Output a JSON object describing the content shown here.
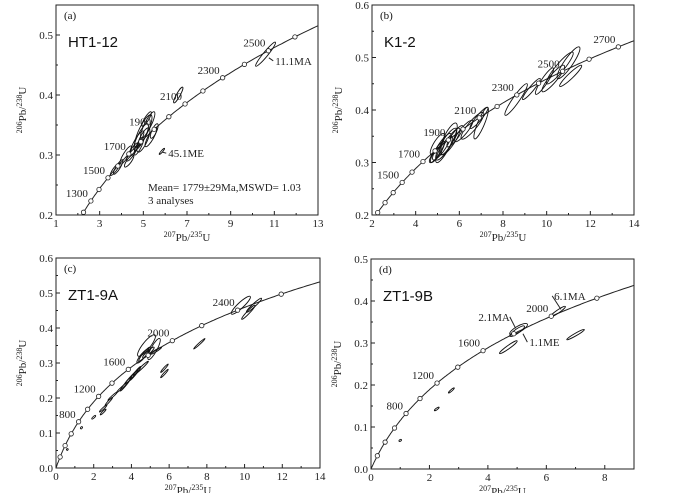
{
  "chart_data": [
    {
      "type": "scatter",
      "subtype": "concordia",
      "panel_label": "(a)",
      "sample": "HT1-12",
      "xlabel": {
        "sup1": "207",
        "base1": "Pb/",
        "sup2": "235",
        "base2": "U"
      },
      "ylabel": {
        "sup1": "206",
        "base1": "Pb/",
        "sup2": "238",
        "base2": "U"
      },
      "xlim": [
        1,
        13
      ],
      "ylim": [
        0.2,
        0.55
      ],
      "xticks": [
        1,
        3,
        5,
        7,
        9,
        11,
        13
      ],
      "xtick_labels": [
        "1",
        "3",
        "5",
        "7",
        "9",
        "11",
        "13"
      ],
      "yticks": [
        0.2,
        0.3,
        0.4,
        0.5
      ],
      "ytick_labels": [
        "0.2",
        "0.3",
        "0.4",
        "0.5"
      ],
      "marker_step_ma": 100,
      "age_labels": [
        1300,
        1500,
        1700,
        1900,
        2100,
        2300,
        2500
      ],
      "annotations": [
        {
          "text": "11.1MA",
          "x": 10.95,
          "y": 0.452,
          "px": 10.75,
          "py": 0.462
        },
        {
          "text": "45.1ME",
          "x": 6.05,
          "y": 0.298,
          "px": 5.85,
          "py": 0.305
        }
      ],
      "notes": [
        "Mean= 1779±29Ma,MSWD= 1.03",
        "3 analyses"
      ],
      "ellipses": [
        [
          10.6,
          0.468,
          0.45,
          0.02,
          0.3
        ],
        [
          6.6,
          0.4,
          0.2,
          0.013,
          0.4
        ],
        [
          5.85,
          0.306,
          0.12,
          0.005,
          0.3
        ],
        [
          5.2,
          0.35,
          0.3,
          0.022,
          0.45
        ],
        [
          5.0,
          0.34,
          0.35,
          0.027,
          0.5
        ],
        [
          4.9,
          0.33,
          0.3,
          0.022,
          0.5
        ],
        [
          5.35,
          0.33,
          0.25,
          0.016,
          0.5
        ],
        [
          4.7,
          0.32,
          0.3,
          0.02,
          0.45
        ],
        [
          5.0,
          0.325,
          0.25,
          0.02,
          0.6
        ],
        [
          4.5,
          0.305,
          0.25,
          0.015,
          0.5
        ],
        [
          4.2,
          0.3,
          0.25,
          0.015,
          0.5
        ],
        [
          4.35,
          0.29,
          0.2,
          0.01,
          0.6
        ],
        [
          3.85,
          0.28,
          0.2,
          0.012,
          0.5
        ],
        [
          3.7,
          0.276,
          0.2,
          0.01,
          0.5
        ],
        [
          5.5,
          0.34,
          0.15,
          0.012,
          0.6
        ],
        [
          5.15,
          0.36,
          0.2,
          0.012,
          0.5
        ],
        [
          4.8,
          0.315,
          0.2,
          0.015,
          0.5
        ]
      ]
    },
    {
      "type": "scatter",
      "subtype": "concordia",
      "panel_label": "(b)",
      "sample": "K1-2",
      "xlabel": {
        "sup1": "207",
        "base1": "Pb/",
        "sup2": "235",
        "base2": "U"
      },
      "ylabel": {
        "sup1": "206",
        "base1": "Pb/",
        "sup2": "238",
        "base2": "U"
      },
      "xlim": [
        2,
        14
      ],
      "ylim": [
        0.2,
        0.6
      ],
      "xticks": [
        2,
        4,
        6,
        8,
        10,
        12,
        14
      ],
      "xtick_labels": [
        "2",
        "4",
        "6",
        "8",
        "10",
        "12",
        "14"
      ],
      "yticks": [
        0.2,
        0.3,
        0.4,
        0.5,
        0.6
      ],
      "ytick_labels": [
        "0.2",
        "0.3",
        "0.4",
        "0.5",
        "0.6"
      ],
      "marker_step_ma": 100,
      "age_labels": [
        1500,
        1700,
        1900,
        2100,
        2300,
        2500,
        2700
      ],
      "annotations": [],
      "notes": [],
      "ellipses": [
        [
          5.0,
          0.32,
          0.3,
          0.02,
          0.5
        ],
        [
          5.2,
          0.33,
          0.4,
          0.025,
          0.5
        ],
        [
          5.4,
          0.335,
          0.45,
          0.03,
          0.5
        ],
        [
          5.6,
          0.34,
          0.4,
          0.025,
          0.5
        ],
        [
          5.0,
          0.335,
          0.3,
          0.02,
          0.6
        ],
        [
          5.8,
          0.35,
          0.35,
          0.02,
          0.5
        ],
        [
          5.3,
          0.325,
          0.35,
          0.025,
          0.5
        ],
        [
          4.9,
          0.315,
          0.25,
          0.015,
          0.6
        ],
        [
          5.5,
          0.345,
          0.35,
          0.03,
          0.55
        ],
        [
          6.2,
          0.36,
          0.4,
          0.02,
          0.5
        ],
        [
          6.6,
          0.37,
          0.5,
          0.025,
          0.5
        ],
        [
          7.0,
          0.375,
          0.3,
          0.03,
          0.4
        ],
        [
          6.9,
          0.385,
          0.4,
          0.02,
          0.4
        ],
        [
          8.6,
          0.42,
          0.5,
          0.03,
          0.35
        ],
        [
          9.3,
          0.44,
          0.4,
          0.02,
          0.35
        ],
        [
          9.9,
          0.455,
          0.4,
          0.025,
          0.4
        ],
        [
          10.3,
          0.46,
          0.5,
          0.025,
          0.45
        ],
        [
          10.6,
          0.48,
          0.6,
          0.03,
          0.4
        ],
        [
          11.0,
          0.49,
          0.5,
          0.03,
          0.45
        ],
        [
          11.1,
          0.465,
          0.5,
          0.02,
          0.35
        ]
      ]
    },
    {
      "type": "scatter",
      "subtype": "concordia",
      "panel_label": "(c)",
      "sample": "ZT1-9A",
      "xlabel": {
        "sup1": "207",
        "base1": "Pb/",
        "sup2": "235",
        "base2": "U"
      },
      "ylabel": {
        "sup1": "206",
        "base1": "Pb/",
        "sup2": "238",
        "base2": "U"
      },
      "xlim": [
        0,
        14
      ],
      "ylim": [
        0,
        0.6
      ],
      "xticks": [
        0,
        2,
        4,
        6,
        8,
        10,
        12,
        14
      ],
      "xtick_labels": [
        "0",
        "2",
        "4",
        "6",
        "8",
        "10",
        "12",
        "14"
      ],
      "yticks": [
        0,
        0.1,
        0.2,
        0.3,
        0.4,
        0.5,
        0.6
      ],
      "ytick_labels": [
        "0.0",
        "0.1",
        "0.2",
        "0.3",
        "0.4",
        "0.5",
        "0.6"
      ],
      "marker_step_ma": 200,
      "age_labels": [
        800,
        1200,
        1600,
        2000,
        2400
      ],
      "annotations": [],
      "notes": [],
      "ellipses": [
        [
          9.8,
          0.465,
          0.5,
          0.025,
          0.45
        ],
        [
          10.5,
          0.465,
          0.4,
          0.02,
          0.3
        ],
        [
          10.2,
          0.445,
          0.35,
          0.02,
          0.3
        ],
        [
          4.8,
          0.35,
          0.45,
          0.03,
          0.55
        ],
        [
          5.2,
          0.34,
          0.3,
          0.03,
          0.5
        ],
        [
          4.6,
          0.32,
          0.3,
          0.02,
          0.5
        ],
        [
          4.7,
          0.325,
          0.3,
          0.02,
          0.4
        ],
        [
          4.9,
          0.33,
          0.3,
          0.015,
          0.4
        ],
        [
          5.3,
          0.335,
          0.3,
          0.01,
          0.3
        ],
        [
          4.5,
          0.285,
          0.4,
          0.02,
          0.2
        ],
        [
          4.2,
          0.27,
          0.3,
          0.02,
          0.25
        ],
        [
          4.0,
          0.26,
          0.35,
          0.02,
          0.2
        ],
        [
          3.7,
          0.24,
          0.3,
          0.02,
          0.25
        ],
        [
          3.5,
          0.23,
          0.3,
          0.015,
          0.2
        ],
        [
          3.0,
          0.205,
          0.25,
          0.012,
          0.25
        ],
        [
          2.8,
          0.19,
          0.2,
          0.012,
          0.25
        ],
        [
          2.5,
          0.17,
          0.2,
          0.01,
          0.2
        ],
        [
          2.5,
          0.16,
          0.15,
          0.008,
          0.25
        ],
        [
          2.0,
          0.145,
          0.1,
          0.005,
          0.5
        ],
        [
          5.75,
          0.285,
          0.2,
          0.012,
          0.25
        ],
        [
          5.75,
          0.27,
          0.2,
          0.012,
          0.25
        ],
        [
          7.6,
          0.355,
          0.3,
          0.015,
          0.15
        ],
        [
          1.35,
          0.115,
          0.04,
          0.003,
          0.5
        ],
        [
          0.6,
          0.053,
          0.03,
          0.002,
          0.5
        ]
      ]
    },
    {
      "type": "scatter",
      "subtype": "concordia",
      "panel_label": "(d)",
      "sample": "ZT1-9B",
      "xlabel": {
        "sup1": "207",
        "base1": "Pb/",
        "sup2": "235",
        "base2": "U"
      },
      "ylabel": {
        "sup1": "206",
        "base1": "Pb/",
        "sup2": "238",
        "base2": "U"
      },
      "xlim": [
        0,
        9
      ],
      "ylim": [
        0,
        0.5
      ],
      "xticks": [
        0,
        2,
        4,
        6,
        8
      ],
      "xtick_labels": [
        "0",
        "2",
        "4",
        "6",
        "8"
      ],
      "yticks": [
        0,
        0.1,
        0.2,
        0.3,
        0.4,
        0.5
      ],
      "ytick_labels": [
        "0.0",
        "0.1",
        "0.2",
        "0.3",
        "0.4",
        "0.5"
      ],
      "marker_step_ma": 200,
      "age_labels": [
        800,
        1200,
        1600,
        2000
      ],
      "annotations": [
        {
          "text": "2.1MA",
          "x": 4.75,
          "y": 0.355,
          "px": 4.95,
          "py": 0.335,
          "anchor": "end"
        },
        {
          "text": "1.1ME",
          "x": 5.35,
          "y": 0.295,
          "px": 5.2,
          "py": 0.322
        },
        {
          "text": "6.1MA",
          "x": 6.2,
          "y": 0.405,
          "px": 6.5,
          "py": 0.38
        }
      ],
      "notes": [],
      "ellipses": [
        [
          5.05,
          0.333,
          0.3,
          0.012,
          0.6
        ],
        [
          5.0,
          0.328,
          0.25,
          0.012,
          0.5
        ],
        [
          6.4,
          0.375,
          0.25,
          0.012,
          0.35
        ],
        [
          4.7,
          0.29,
          0.3,
          0.015,
          0.3
        ],
        [
          7.0,
          0.32,
          0.3,
          0.012,
          0.25
        ],
        [
          2.75,
          0.187,
          0.1,
          0.006,
          0.4
        ],
        [
          2.25,
          0.143,
          0.08,
          0.004,
          0.4
        ],
        [
          1.0,
          0.068,
          0.04,
          0.002,
          0.5
        ]
      ]
    }
  ]
}
